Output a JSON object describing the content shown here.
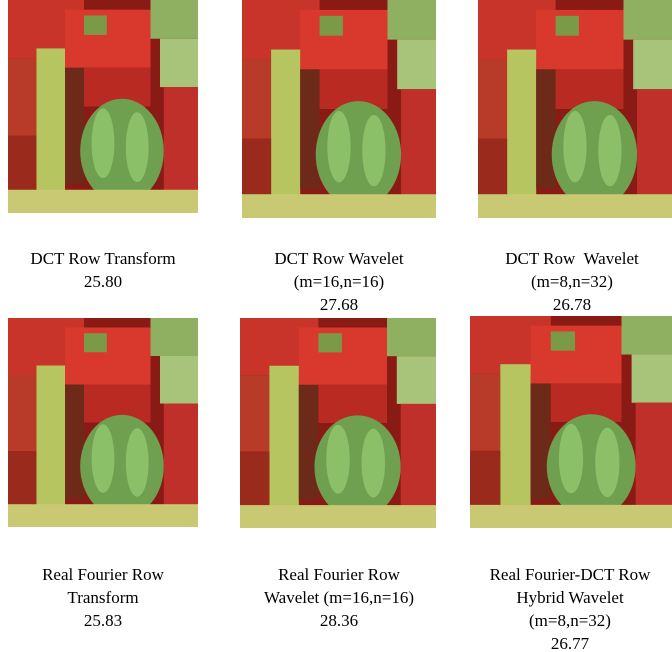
{
  "figures": [
    {
      "caption": [
        "DCT Row Transform"
      ],
      "psnr": "25.80"
    },
    {
      "caption": [
        "DCT Row Wavelet",
        "(m=16,n=16)"
      ],
      "psnr": "27.68"
    },
    {
      "caption": [
        "DCT Row  Wavelet",
        "(m=8,n=32)"
      ],
      "psnr": "26.78"
    },
    {
      "caption": [
        "Real Fourier Row",
        "Transform"
      ],
      "psnr": "25.83"
    },
    {
      "caption": [
        "Real Fourier Row",
        "Wavelet (m=16,n=16)"
      ],
      "psnr": "28.36"
    },
    {
      "caption": [
        "Real Fourier-DCT Row",
        "Hybrid Wavelet",
        "(m=8,n=32)"
      ],
      "psnr": "26.77"
    }
  ]
}
